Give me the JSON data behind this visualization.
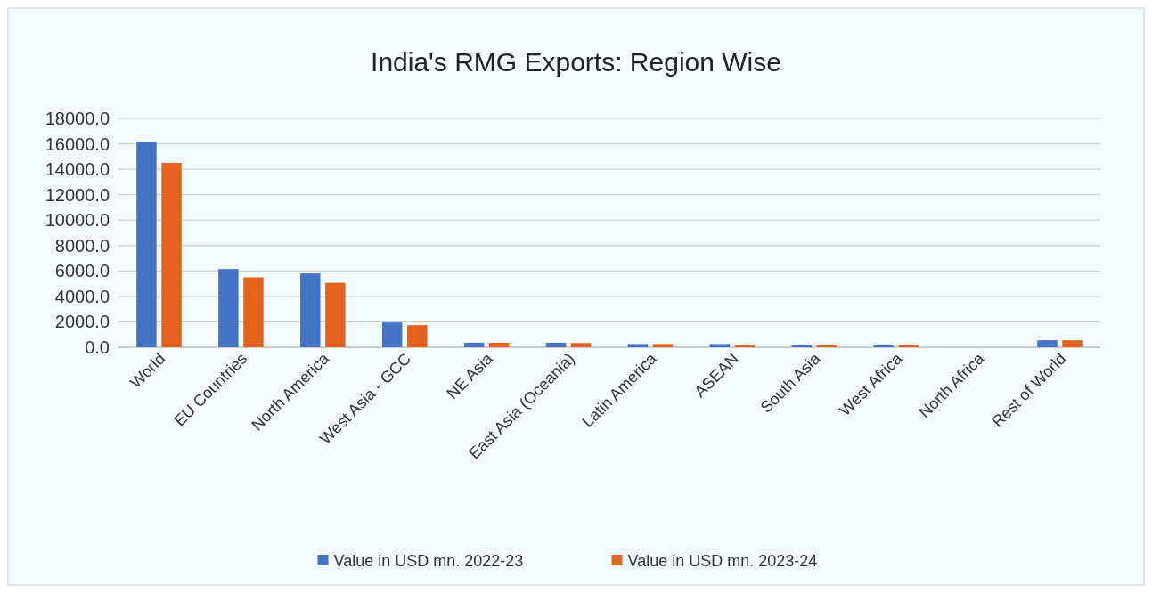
{
  "chart_data": {
    "type": "bar",
    "title": "India's RMG Exports: Region Wise",
    "categories": [
      "World",
      "EU Countries",
      "North America",
      "West Asia - GCC",
      "NE Asia",
      "East Asia (Oceania)",
      "Latin America",
      "ASEAN",
      "South Asia",
      "West Africa",
      "North Africa",
      "Rest of World"
    ],
    "series": [
      {
        "name": "Value in USD mn. 2022-23",
        "color": "#4472c4",
        "values": [
          16150,
          6150,
          5800,
          1950,
          350,
          350,
          250,
          250,
          150,
          150,
          null,
          550
        ]
      },
      {
        "name": "Value in USD mn. 2023-24",
        "color": "#e4621e",
        "values": [
          14500,
          5500,
          5070,
          1740,
          350,
          330,
          250,
          150,
          150,
          150,
          null,
          550
        ]
      }
    ],
    "ylim": [
      0,
      18000
    ],
    "yticks": [
      {
        "value": 0,
        "label": "0.0"
      },
      {
        "value": 2000,
        "label": "2000.0"
      },
      {
        "value": 4000,
        "label": "4000.0"
      },
      {
        "value": 6000,
        "label": "6000.0"
      },
      {
        "value": 8000,
        "label": "8000.0"
      },
      {
        "value": 10000,
        "label": "10000.0"
      },
      {
        "value": 12000,
        "label": "12000.0"
      },
      {
        "value": 14000,
        "label": "14000.0"
      },
      {
        "value": 16000,
        "label": "16000.0"
      },
      {
        "value": 18000,
        "label": "18000.0"
      }
    ],
    "grid": "y",
    "legend": "bottom"
  }
}
